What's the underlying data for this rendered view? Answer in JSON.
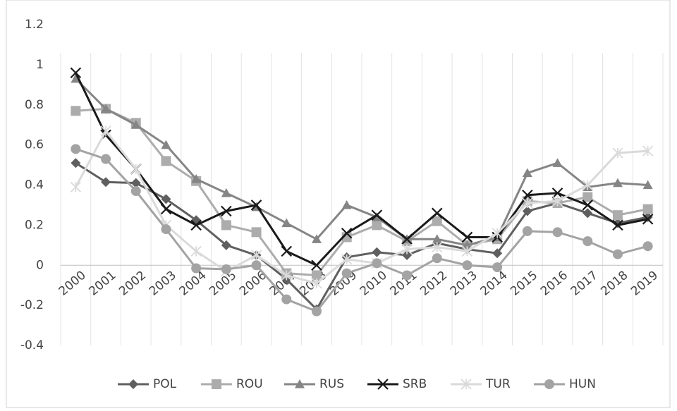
{
  "chart_data": {
    "type": "line",
    "categories": [
      "2000",
      "2001",
      "2002",
      "2003",
      "2004",
      "2005",
      "2006",
      "2007",
      "2008",
      "2009",
      "2010",
      "2011",
      "2012",
      "2013",
      "2014",
      "2015",
      "2016",
      "2017",
      "2018",
      "2019"
    ],
    "series": [
      {
        "name": "POL",
        "color": "#5f5f5f",
        "marker": "diamond",
        "values": [
          0.51,
          0.415,
          0.41,
          0.33,
          0.225,
          0.1,
          0.05,
          -0.07,
          -0.22,
          0.04,
          0.065,
          0.05,
          0.11,
          0.08,
          0.06,
          0.27,
          0.31,
          0.26,
          0.21,
          0.24
        ]
      },
      {
        "name": "ROU",
        "color": "#acacac",
        "marker": "square",
        "values": [
          0.77,
          0.78,
          0.71,
          0.52,
          0.42,
          0.2,
          0.165,
          -0.04,
          -0.05,
          0.14,
          0.2,
          0.12,
          0.22,
          0.1,
          0.13,
          0.32,
          0.31,
          0.34,
          0.25,
          0.28
        ]
      },
      {
        "name": "RUS",
        "color": "#858585",
        "marker": "triangle",
        "values": [
          0.93,
          0.78,
          0.7,
          0.6,
          0.43,
          0.36,
          0.29,
          0.21,
          0.13,
          0.3,
          0.24,
          0.13,
          0.13,
          0.1,
          0.14,
          0.46,
          0.51,
          0.39,
          0.41,
          0.4
        ]
      },
      {
        "name": "SRB",
        "color": "#1a1a1a",
        "marker": "x",
        "values": [
          0.96,
          0.65,
          0.48,
          0.28,
          0.2,
          0.27,
          0.3,
          0.07,
          0.0,
          0.16,
          0.25,
          0.13,
          0.26,
          0.14,
          0.14,
          0.35,
          0.36,
          0.3,
          0.2,
          0.23
        ]
      },
      {
        "name": "TUR",
        "color": "#dadada",
        "marker": "star",
        "values": [
          0.39,
          0.67,
          0.48,
          0.2,
          0.07,
          -0.03,
          0.05,
          -0.05,
          -0.09,
          0.03,
          0.01,
          0.08,
          0.09,
          0.07,
          0.16,
          0.31,
          0.32,
          0.4,
          0.56,
          0.57
        ]
      },
      {
        "name": "HUN",
        "color": "#a3a3a3",
        "marker": "circle",
        "values": [
          0.58,
          0.53,
          0.37,
          0.18,
          -0.015,
          -0.02,
          0.0,
          -0.17,
          -0.23,
          -0.04,
          0.01,
          -0.05,
          0.035,
          0.0,
          -0.01,
          0.17,
          0.165,
          0.12,
          0.055,
          0.095
        ]
      }
    ],
    "ylim": [
      -0.4,
      1.2
    ],
    "yticks": [
      -0.4,
      -0.2,
      0,
      0.2,
      0.4,
      0.6,
      0.8,
      1,
      1.2
    ],
    "legend": "bottom"
  }
}
